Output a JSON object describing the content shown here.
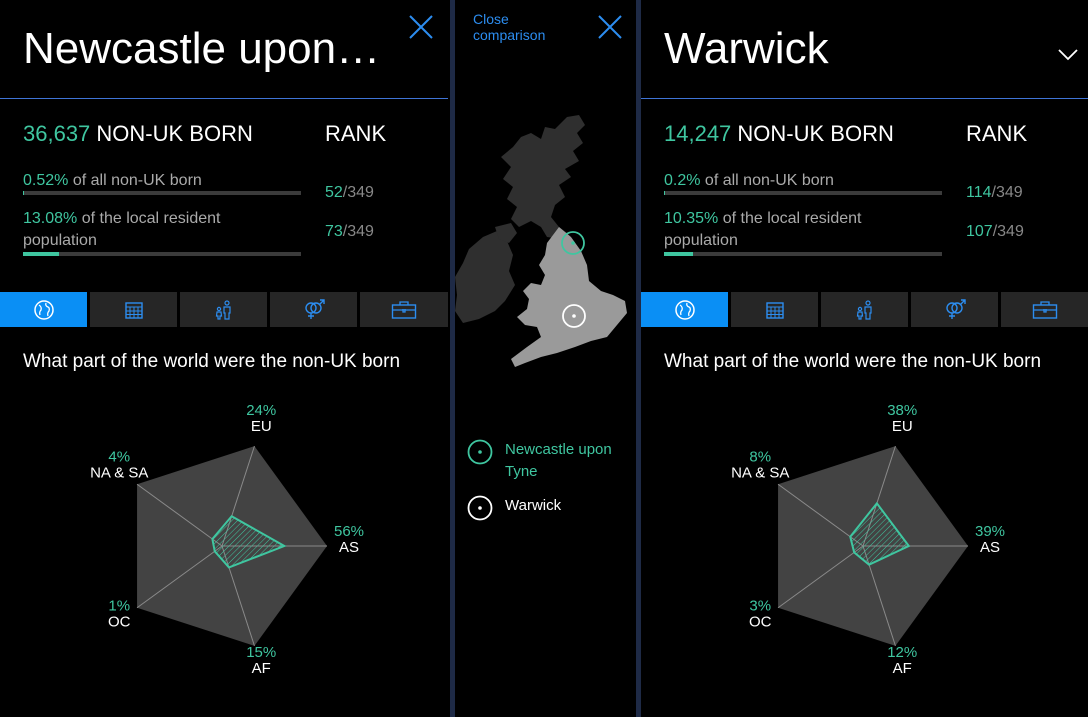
{
  "left": {
    "title": "Newcastle upon…",
    "count": "36,637",
    "count_label": "NON-UK BORN",
    "rank_header": "RANK",
    "share_pct": "0.52%",
    "share_text": "of all non-UK born",
    "share_fill": 0.0052,
    "local_pct": "13.08%",
    "local_text_1": "of the local resident",
    "local_text_2": "population",
    "local_fill": 0.1308,
    "rank1": "52",
    "rank1_of": "/349",
    "rank2": "73",
    "rank2_of": "/349",
    "question": "What part of the world were the non-UK born",
    "radar": [
      {
        "pct": "24%",
        "label": "EU",
        "value": 24
      },
      {
        "pct": "56%",
        "label": "AS",
        "value": 56
      },
      {
        "pct": "15%",
        "label": "AF",
        "value": 15
      },
      {
        "pct": "1%",
        "label": "OC",
        "value": 1
      },
      {
        "pct": "4%",
        "label": "NA & SA",
        "value": 4
      }
    ]
  },
  "right": {
    "title": "Warwick",
    "count": "14,247",
    "count_label": "NON-UK BORN",
    "rank_header": "RANK",
    "share_pct": "0.2%",
    "share_text": "of all non-UK born",
    "share_fill": 0.002,
    "local_pct": "10.35%",
    "local_text_1": "of the local resident",
    "local_text_2": "population",
    "local_fill": 0.1035,
    "rank1": "114",
    "rank1_of": "/349",
    "rank2": "107",
    "rank2_of": "/349",
    "question": "What part of the world were the non-UK born",
    "radar": [
      {
        "pct": "38%",
        "label": "EU",
        "value": 38
      },
      {
        "pct": "39%",
        "label": "AS",
        "value": 39
      },
      {
        "pct": "12%",
        "label": "AF",
        "value": 12
      },
      {
        "pct": "3%",
        "label": "OC",
        "value": 3
      },
      {
        "pct": "8%",
        "label": "NA & SA",
        "value": 8
      }
    ]
  },
  "middle": {
    "close_line1": "Close",
    "close_line2": "comparison",
    "legend": [
      {
        "name": "Newcastle upon Tyne",
        "line1": "Newcastle upon",
        "line2": "Tyne",
        "color": "#3fc6a0"
      },
      {
        "name": "Warwick",
        "line1": "Warwick",
        "line2": "",
        "color": "#ffffff"
      }
    ]
  },
  "tabs": [
    "globe-icon",
    "calendar-icon",
    "family-icon",
    "gender-icon",
    "briefcase-icon"
  ],
  "colors": {
    "accent": "#3fc6a0",
    "tab_active": "#0a8ff5",
    "link": "#2c8df0",
    "divider": "#3f74d6"
  }
}
